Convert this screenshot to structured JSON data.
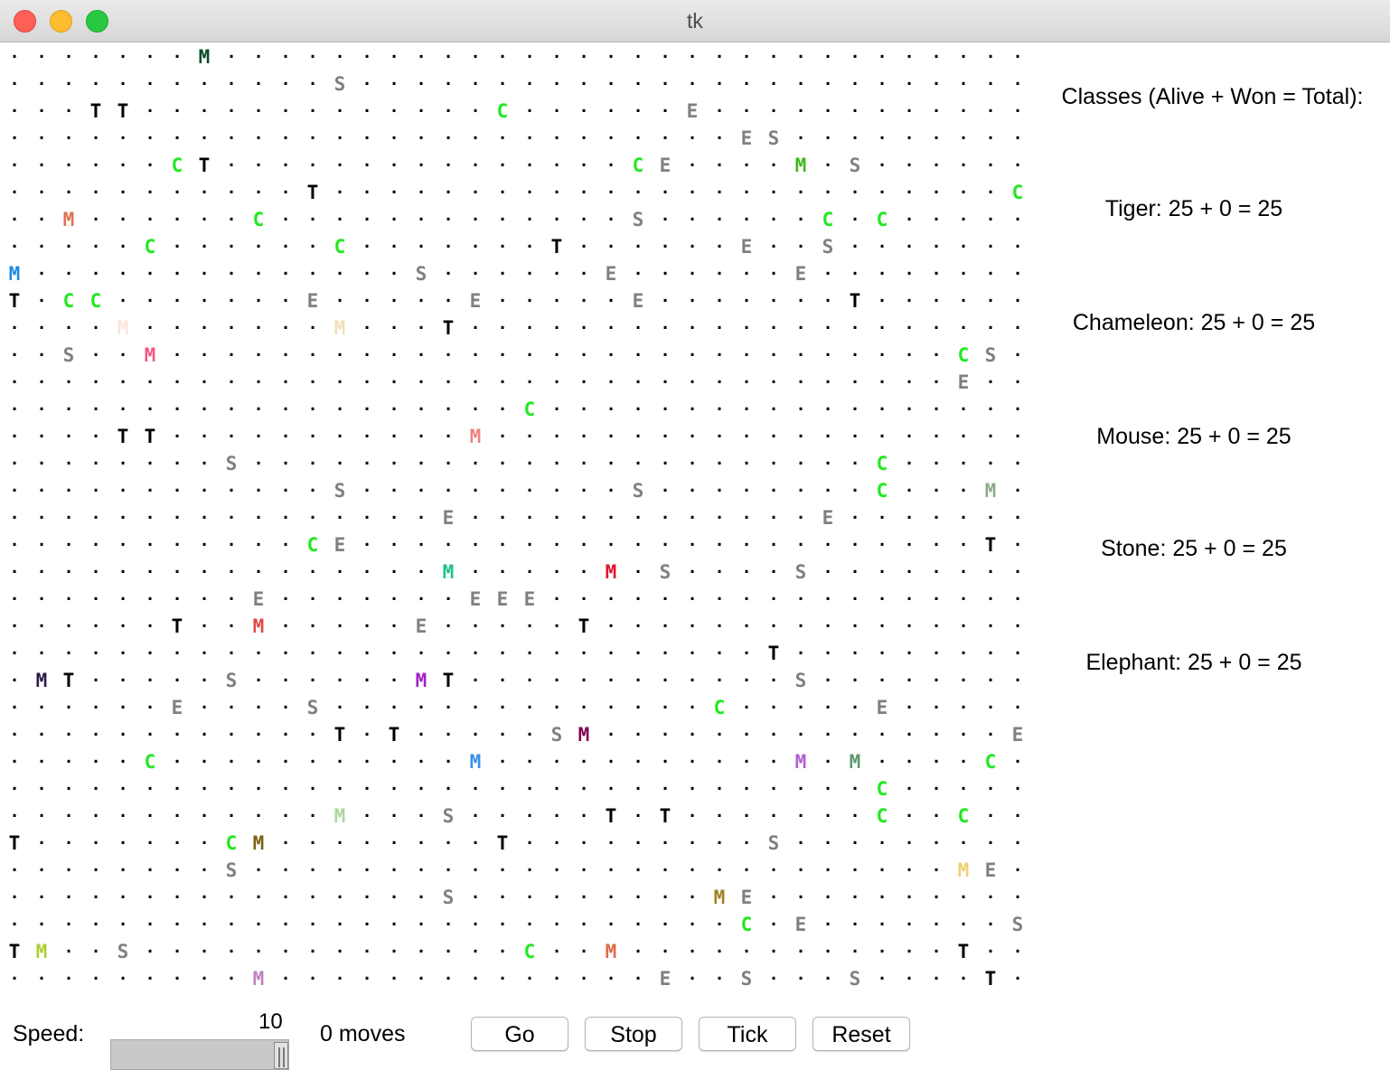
{
  "window": {
    "title": "tk"
  },
  "grid": {
    "cols": 38,
    "rows": 35,
    "empty_symbol": ".",
    "critters": [
      {
        "r": 0,
        "c": 7,
        "ch": "M",
        "color": "#0b4d2a"
      },
      {
        "r": 1,
        "c": 12,
        "ch": "S",
        "color": "#808080"
      },
      {
        "r": 2,
        "c": 3,
        "ch": "T",
        "color": "#000000"
      },
      {
        "r": 2,
        "c": 4,
        "ch": "T",
        "color": "#000000"
      },
      {
        "r": 2,
        "c": 18,
        "ch": "C",
        "color": "#22e822"
      },
      {
        "r": 2,
        "c": 25,
        "ch": "E",
        "color": "#808080"
      },
      {
        "r": 3,
        "c": 27,
        "ch": "E",
        "color": "#808080"
      },
      {
        "r": 3,
        "c": 28,
        "ch": "S",
        "color": "#808080"
      },
      {
        "r": 4,
        "c": 6,
        "ch": "C",
        "color": "#22e822"
      },
      {
        "r": 4,
        "c": 7,
        "ch": "T",
        "color": "#000000"
      },
      {
        "r": 4,
        "c": 23,
        "ch": "C",
        "color": "#22e822"
      },
      {
        "r": 4,
        "c": 24,
        "ch": "E",
        "color": "#808080"
      },
      {
        "r": 4,
        "c": 29,
        "ch": "M",
        "color": "#3fb81e"
      },
      {
        "r": 4,
        "c": 31,
        "ch": "S",
        "color": "#808080"
      },
      {
        "r": 5,
        "c": 11,
        "ch": "T",
        "color": "#000000"
      },
      {
        "r": 5,
        "c": 37,
        "ch": "C",
        "color": "#22e822"
      },
      {
        "r": 6,
        "c": 2,
        "ch": "M",
        "color": "#e0714f"
      },
      {
        "r": 6,
        "c": 9,
        "ch": "C",
        "color": "#22e822"
      },
      {
        "r": 6,
        "c": 23,
        "ch": "S",
        "color": "#808080"
      },
      {
        "r": 6,
        "c": 30,
        "ch": "C",
        "color": "#22e822"
      },
      {
        "r": 6,
        "c": 32,
        "ch": "C",
        "color": "#22e822"
      },
      {
        "r": 7,
        "c": 5,
        "ch": "C",
        "color": "#22e822"
      },
      {
        "r": 7,
        "c": 12,
        "ch": "C",
        "color": "#22e822"
      },
      {
        "r": 7,
        "c": 20,
        "ch": "T",
        "color": "#000000"
      },
      {
        "r": 7,
        "c": 27,
        "ch": "E",
        "color": "#808080"
      },
      {
        "r": 7,
        "c": 30,
        "ch": "S",
        "color": "#808080"
      },
      {
        "r": 8,
        "c": 0,
        "ch": "M",
        "color": "#1f8ae0"
      },
      {
        "r": 8,
        "c": 15,
        "ch": "S",
        "color": "#808080"
      },
      {
        "r": 8,
        "c": 22,
        "ch": "E",
        "color": "#808080"
      },
      {
        "r": 8,
        "c": 29,
        "ch": "E",
        "color": "#808080"
      },
      {
        "r": 9,
        "c": 0,
        "ch": "T",
        "color": "#000000"
      },
      {
        "r": 9,
        "c": 2,
        "ch": "C",
        "color": "#22e822"
      },
      {
        "r": 9,
        "c": 3,
        "ch": "C",
        "color": "#22e822"
      },
      {
        "r": 9,
        "c": 11,
        "ch": "E",
        "color": "#808080"
      },
      {
        "r": 9,
        "c": 17,
        "ch": "E",
        "color": "#808080"
      },
      {
        "r": 9,
        "c": 23,
        "ch": "E",
        "color": "#808080"
      },
      {
        "r": 9,
        "c": 31,
        "ch": "T",
        "color": "#000000"
      },
      {
        "r": 10,
        "c": 4,
        "ch": "M",
        "color": "#fbe4dc"
      },
      {
        "r": 10,
        "c": 12,
        "ch": "M",
        "color": "#f3dfb4"
      },
      {
        "r": 10,
        "c": 16,
        "ch": "T",
        "color": "#000000"
      },
      {
        "r": 11,
        "c": 2,
        "ch": "S",
        "color": "#808080"
      },
      {
        "r": 11,
        "c": 5,
        "ch": "M",
        "color": "#ee5a82"
      },
      {
        "r": 11,
        "c": 35,
        "ch": "C",
        "color": "#22e822"
      },
      {
        "r": 11,
        "c": 36,
        "ch": "S",
        "color": "#808080"
      },
      {
        "r": 12,
        "c": 35,
        "ch": "E",
        "color": "#808080"
      },
      {
        "r": 13,
        "c": 19,
        "ch": "C",
        "color": "#22e822"
      },
      {
        "r": 14,
        "c": 4,
        "ch": "T",
        "color": "#000000"
      },
      {
        "r": 14,
        "c": 5,
        "ch": "T",
        "color": "#000000"
      },
      {
        "r": 14,
        "c": 17,
        "ch": "M",
        "color": "#f08080"
      },
      {
        "r": 15,
        "c": 8,
        "ch": "S",
        "color": "#808080"
      },
      {
        "r": 15,
        "c": 32,
        "ch": "C",
        "color": "#22e822"
      },
      {
        "r": 16,
        "c": 12,
        "ch": "S",
        "color": "#808080"
      },
      {
        "r": 16,
        "c": 23,
        "ch": "S",
        "color": "#808080"
      },
      {
        "r": 16,
        "c": 32,
        "ch": "C",
        "color": "#22e822"
      },
      {
        "r": 16,
        "c": 36,
        "ch": "M",
        "color": "#8faa8b"
      },
      {
        "r": 17,
        "c": 16,
        "ch": "E",
        "color": "#808080"
      },
      {
        "r": 17,
        "c": 30,
        "ch": "E",
        "color": "#808080"
      },
      {
        "r": 18,
        "c": 11,
        "ch": "C",
        "color": "#22e822"
      },
      {
        "r": 18,
        "c": 12,
        "ch": "E",
        "color": "#808080"
      },
      {
        "r": 18,
        "c": 36,
        "ch": "T",
        "color": "#000000"
      },
      {
        "r": 19,
        "c": 16,
        "ch": "M",
        "color": "#1fbf8e"
      },
      {
        "r": 19,
        "c": 22,
        "ch": "M",
        "color": "#e0142c"
      },
      {
        "r": 19,
        "c": 24,
        "ch": "S",
        "color": "#808080"
      },
      {
        "r": 19,
        "c": 29,
        "ch": "S",
        "color": "#808080"
      },
      {
        "r": 20,
        "c": 9,
        "ch": "E",
        "color": "#808080"
      },
      {
        "r": 20,
        "c": 17,
        "ch": "E",
        "color": "#808080"
      },
      {
        "r": 20,
        "c": 18,
        "ch": "E",
        "color": "#808080"
      },
      {
        "r": 20,
        "c": 19,
        "ch": "E",
        "color": "#808080"
      },
      {
        "r": 21,
        "c": 6,
        "ch": "T",
        "color": "#000000"
      },
      {
        "r": 21,
        "c": 9,
        "ch": "M",
        "color": "#e04848"
      },
      {
        "r": 21,
        "c": 15,
        "ch": "E",
        "color": "#808080"
      },
      {
        "r": 21,
        "c": 21,
        "ch": "T",
        "color": "#000000"
      },
      {
        "r": 22,
        "c": 28,
        "ch": "T",
        "color": "#000000"
      },
      {
        "r": 23,
        "c": 1,
        "ch": "M",
        "color": "#2a1a4a"
      },
      {
        "r": 23,
        "c": 2,
        "ch": "T",
        "color": "#000000"
      },
      {
        "r": 23,
        "c": 8,
        "ch": "S",
        "color": "#808080"
      },
      {
        "r": 23,
        "c": 15,
        "ch": "M",
        "color": "#a020c8"
      },
      {
        "r": 23,
        "c": 16,
        "ch": "T",
        "color": "#000000"
      },
      {
        "r": 23,
        "c": 29,
        "ch": "S",
        "color": "#808080"
      },
      {
        "r": 24,
        "c": 6,
        "ch": "E",
        "color": "#808080"
      },
      {
        "r": 24,
        "c": 11,
        "ch": "S",
        "color": "#808080"
      },
      {
        "r": 24,
        "c": 26,
        "ch": "C",
        "color": "#22e822"
      },
      {
        "r": 24,
        "c": 32,
        "ch": "E",
        "color": "#808080"
      },
      {
        "r": 25,
        "c": 12,
        "ch": "T",
        "color": "#000000"
      },
      {
        "r": 25,
        "c": 14,
        "ch": "T",
        "color": "#000000"
      },
      {
        "r": 25,
        "c": 20,
        "ch": "S",
        "color": "#808080"
      },
      {
        "r": 25,
        "c": 21,
        "ch": "M",
        "color": "#800050"
      },
      {
        "r": 25,
        "c": 37,
        "ch": "E",
        "color": "#808080"
      },
      {
        "r": 26,
        "c": 5,
        "ch": "C",
        "color": "#22e822"
      },
      {
        "r": 26,
        "c": 17,
        "ch": "M",
        "color": "#3a8ee8"
      },
      {
        "r": 26,
        "c": 29,
        "ch": "M",
        "color": "#b060d0"
      },
      {
        "r": 26,
        "c": 31,
        "ch": "M",
        "color": "#5a9a6a"
      },
      {
        "r": 26,
        "c": 36,
        "ch": "C",
        "color": "#22e822"
      },
      {
        "r": 27,
        "c": 32,
        "ch": "C",
        "color": "#22e822"
      },
      {
        "r": 28,
        "c": 12,
        "ch": "M",
        "color": "#a8d8a0"
      },
      {
        "r": 28,
        "c": 16,
        "ch": "S",
        "color": "#808080"
      },
      {
        "r": 28,
        "c": 22,
        "ch": "T",
        "color": "#000000"
      },
      {
        "r": 28,
        "c": 24,
        "ch": "T",
        "color": "#000000"
      },
      {
        "r": 28,
        "c": 32,
        "ch": "C",
        "color": "#22e822"
      },
      {
        "r": 28,
        "c": 35,
        "ch": "C",
        "color": "#22e822"
      },
      {
        "r": 29,
        "c": 0,
        "ch": "T",
        "color": "#000000"
      },
      {
        "r": 29,
        "c": 8,
        "ch": "C",
        "color": "#22e822"
      },
      {
        "r": 29,
        "c": 9,
        "ch": "M",
        "color": "#7a6010"
      },
      {
        "r": 29,
        "c": 18,
        "ch": "T",
        "color": "#000000"
      },
      {
        "r": 29,
        "c": 28,
        "ch": "S",
        "color": "#808080"
      },
      {
        "r": 30,
        "c": 8,
        "ch": "S",
        "color": "#808080"
      },
      {
        "r": 30,
        "c": 35,
        "ch": "M",
        "color": "#f0d070"
      },
      {
        "r": 30,
        "c": 36,
        "ch": "E",
        "color": "#808080"
      },
      {
        "r": 31,
        "c": 16,
        "ch": "S",
        "color": "#808080"
      },
      {
        "r": 31,
        "c": 26,
        "ch": "M",
        "color": "#a08020"
      },
      {
        "r": 31,
        "c": 27,
        "ch": "E",
        "color": "#808080"
      },
      {
        "r": 32,
        "c": 27,
        "ch": "C",
        "color": "#22e822"
      },
      {
        "r": 32,
        "c": 29,
        "ch": "E",
        "color": "#808080"
      },
      {
        "r": 32,
        "c": 37,
        "ch": "S",
        "color": "#808080"
      },
      {
        "r": 33,
        "c": 0,
        "ch": "T",
        "color": "#000000"
      },
      {
        "r": 33,
        "c": 1,
        "ch": "M",
        "color": "#a8d030"
      },
      {
        "r": 33,
        "c": 4,
        "ch": "S",
        "color": "#808080"
      },
      {
        "r": 33,
        "c": 19,
        "ch": "C",
        "color": "#22e822"
      },
      {
        "r": 33,
        "c": 22,
        "ch": "M",
        "color": "#e06848"
      },
      {
        "r": 33,
        "c": 35,
        "ch": "T",
        "color": "#000000"
      },
      {
        "r": 34,
        "c": 9,
        "ch": "M",
        "color": "#c080c0"
      },
      {
        "r": 34,
        "c": 24,
        "ch": "E",
        "color": "#808080"
      },
      {
        "r": 34,
        "c": 27,
        "ch": "S",
        "color": "#808080"
      },
      {
        "r": 34,
        "c": 31,
        "ch": "S",
        "color": "#808080"
      },
      {
        "r": 34,
        "c": 36,
        "ch": "T",
        "color": "#000000"
      }
    ]
  },
  "sidebar": {
    "heading": "Classes (Alive + Won = Total):",
    "stats": [
      {
        "label": "Tiger: 25 + 0 = 25"
      },
      {
        "label": "Chameleon: 25 + 0 = 25"
      },
      {
        "label": "Mouse: 25 + 0 = 25"
      },
      {
        "label": "Stone: 25 + 0 = 25"
      },
      {
        "label": "Elephant: 25 + 0 = 25"
      }
    ]
  },
  "controls": {
    "speed_label": "Speed:",
    "speed_value": "10",
    "speed_level": 1.0,
    "moves_text": "0 moves",
    "buttons": {
      "go": "Go",
      "stop": "Stop",
      "tick": "Tick",
      "reset": "Reset"
    }
  }
}
